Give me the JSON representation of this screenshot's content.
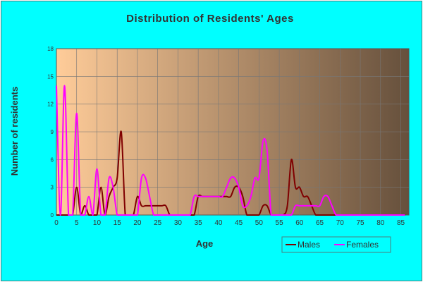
{
  "chart_data": {
    "type": "line",
    "title": "Distribution of Residents' Ages",
    "xlabel": "Age",
    "ylabel": "Number of residents",
    "xlim": [
      0,
      87
    ],
    "ylim": [
      0,
      18
    ],
    "xticks": [
      "0",
      "5",
      "10",
      "15",
      "20",
      "25",
      "30",
      "35",
      "40",
      "45",
      "50",
      "55",
      "60",
      "65",
      "70",
      "75",
      "80",
      "85"
    ],
    "yticks": [
      "0",
      "3",
      "6",
      "9",
      "12",
      "15",
      "18"
    ],
    "grid": true,
    "legend_position": "bottom-right",
    "background_gradient": [
      "#ffcc99",
      "#66503c"
    ],
    "series": [
      {
        "name": "Males",
        "color": "#800000",
        "x": [
          0,
          1,
          2,
          3,
          4,
          5,
          6,
          7,
          8,
          9,
          10,
          11,
          12,
          13,
          14,
          15,
          16,
          17,
          18,
          19,
          20,
          21,
          22,
          23,
          24,
          25,
          26,
          27,
          28,
          29,
          30,
          31,
          32,
          33,
          34,
          35,
          36,
          37,
          38,
          39,
          40,
          41,
          42,
          43,
          44,
          45,
          46,
          47,
          48,
          49,
          50,
          51,
          52,
          53,
          54,
          55,
          56,
          57,
          58,
          59,
          60,
          61,
          62,
          63,
          64,
          65,
          66,
          67,
          68,
          69,
          70,
          71,
          72,
          73,
          74,
          75,
          76,
          77,
          78,
          79,
          80,
          81,
          82,
          83,
          84,
          85,
          86
        ],
        "values": [
          0,
          0,
          0,
          0,
          0,
          3,
          0,
          1,
          0,
          0,
          0,
          3,
          0,
          2,
          3,
          4,
          9,
          0,
          0,
          0,
          2,
          1,
          1,
          1,
          1,
          1,
          1,
          1,
          0,
          0,
          0,
          0,
          0,
          0,
          0,
          2,
          2,
          2,
          2,
          2,
          2,
          2,
          2,
          2,
          3,
          3,
          2,
          0,
          0,
          0,
          0,
          1,
          1,
          0,
          0,
          0,
          0,
          1,
          6,
          3,
          3,
          2,
          2,
          1,
          0,
          0,
          0,
          0,
          0,
          0,
          0,
          0,
          0,
          0,
          0,
          0,
          0,
          0,
          0,
          0,
          0,
          0,
          0,
          0,
          0,
          0,
          0
        ]
      },
      {
        "name": "Females",
        "color": "#ff00ff",
        "x": [
          0,
          1,
          2,
          3,
          4,
          5,
          6,
          7,
          8,
          9,
          10,
          11,
          12,
          13,
          14,
          15,
          16,
          17,
          18,
          19,
          20,
          21,
          22,
          23,
          24,
          25,
          26,
          27,
          28,
          29,
          30,
          31,
          32,
          33,
          34,
          35,
          36,
          37,
          38,
          39,
          40,
          41,
          42,
          43,
          44,
          45,
          46,
          47,
          48,
          49,
          50,
          51,
          52,
          53,
          54,
          55,
          56,
          57,
          58,
          59,
          60,
          61,
          62,
          63,
          64,
          65,
          66,
          67,
          68,
          69,
          70,
          71,
          72,
          73,
          74,
          75,
          76,
          77,
          78,
          79,
          80,
          81,
          82,
          83,
          84,
          85,
          86
        ],
        "values": [
          14,
          0,
          14,
          0,
          0,
          11,
          0,
          0,
          2,
          0,
          5,
          0,
          0,
          4,
          3,
          0,
          0,
          0,
          0,
          0,
          0,
          4,
          4,
          2,
          0,
          0,
          0,
          0,
          0,
          0,
          0,
          0,
          0,
          0,
          2,
          2,
          2,
          2,
          2,
          2,
          2,
          2,
          3,
          4,
          4,
          3,
          1,
          1,
          2,
          4,
          4,
          8,
          7,
          0,
          0,
          0,
          0,
          0,
          0,
          1,
          1,
          1,
          1,
          1,
          1,
          1,
          2,
          2,
          1,
          0,
          0,
          0,
          0,
          0,
          0,
          0,
          0,
          0,
          0,
          0,
          0,
          0,
          0,
          0,
          0,
          0,
          0
        ]
      }
    ]
  }
}
